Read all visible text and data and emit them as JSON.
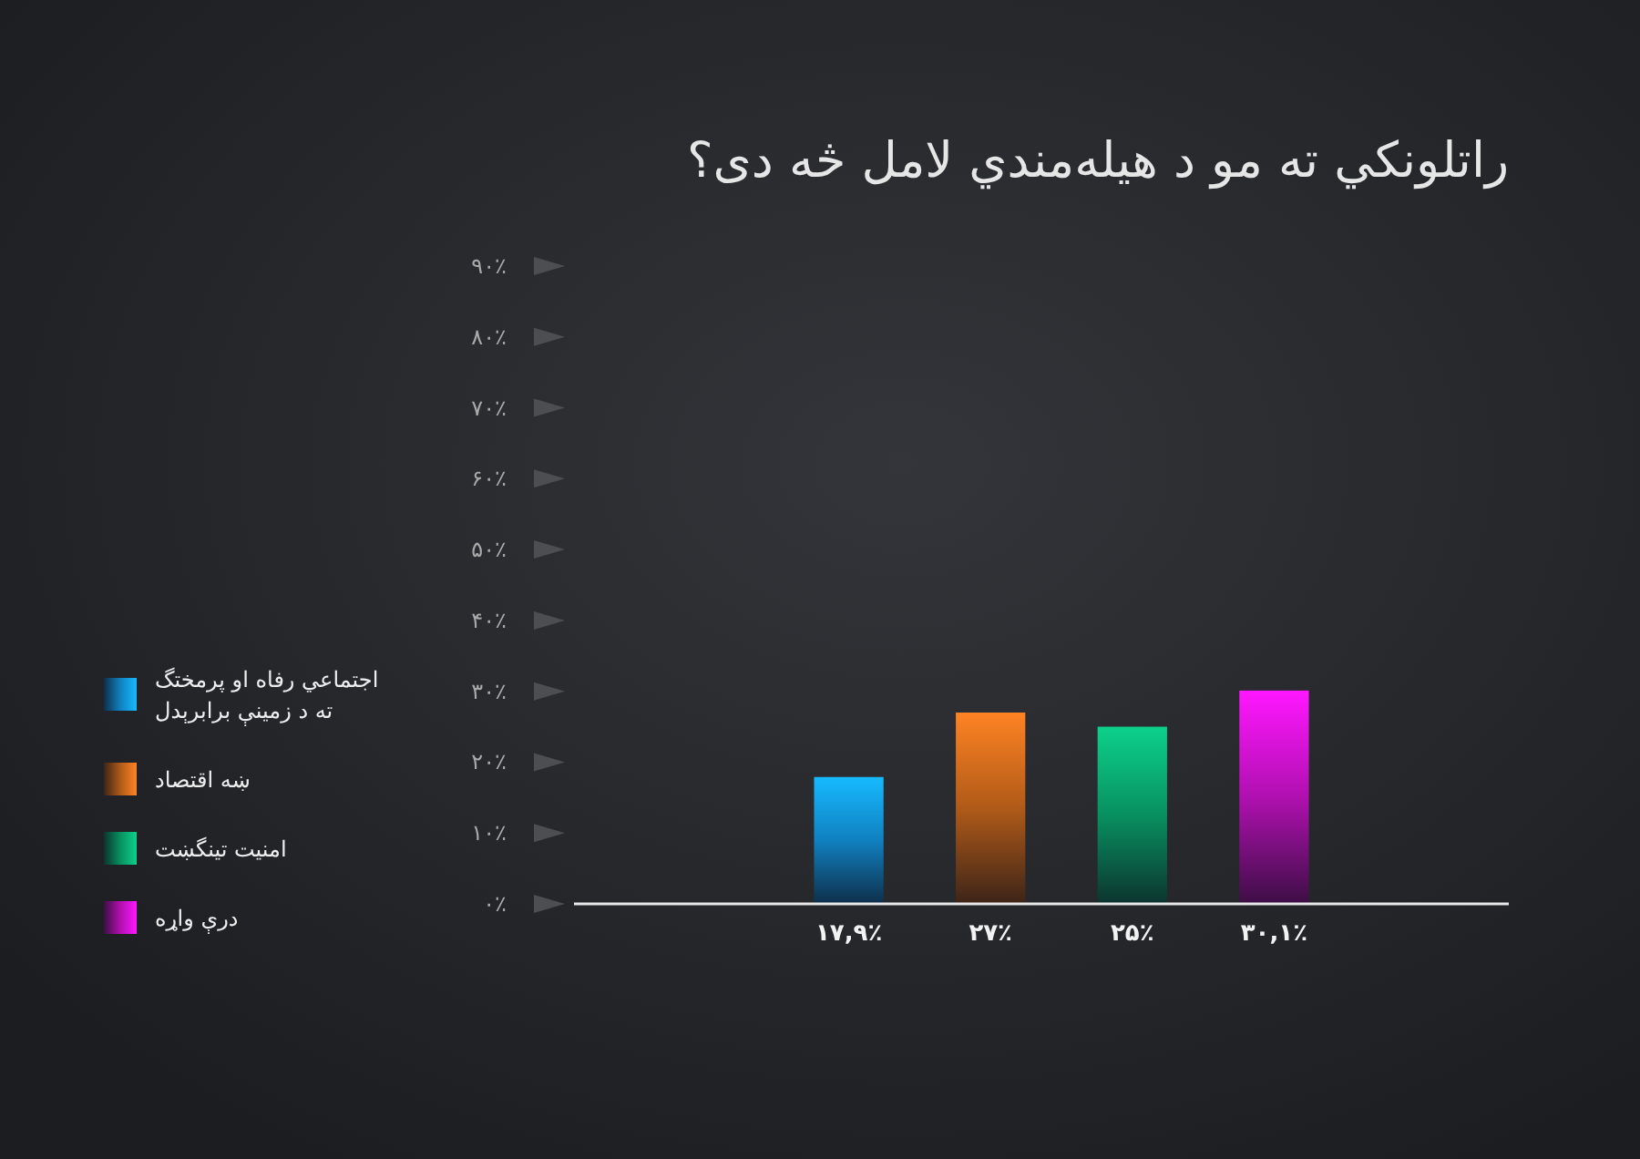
{
  "chart_data": {
    "type": "bar",
    "title": "راتلونکي ته مو د هیله‌مندي لامل څه دی؟",
    "categories": [
      null
    ],
    "series": [
      {
        "name": "اجتماعي رفاه او پرمختگ ته د زمینې برابرېدل",
        "color": "#1080c0",
        "values": [
          17.9
        ],
        "value_labels": [
          "۱۷,۹٪"
        ]
      },
      {
        "name": "ښه اقتصاد",
        "color": "#b05a18",
        "values": [
          27
        ],
        "value_labels": [
          "۲۷٪"
        ]
      },
      {
        "name": "امنیت تینگښت",
        "color": "#089060",
        "values": [
          25
        ],
        "value_labels": [
          "۲۵٪"
        ]
      },
      {
        "name": "درې واړه",
        "color": "#b010b0",
        "values": [
          30.1
        ],
        "value_labels": [
          "۳۰,۱٪"
        ]
      }
    ],
    "ylim": [
      0,
      90
    ],
    "yticks": [
      {
        "value": 0,
        "label": "۰٪"
      },
      {
        "value": 10,
        "label": "۱۰٪"
      },
      {
        "value": 20,
        "label": "۲۰٪"
      },
      {
        "value": 30,
        "label": "۳۰٪"
      },
      {
        "value": 40,
        "label": "۴۰٪"
      },
      {
        "value": 50,
        "label": "۵۰٪"
      },
      {
        "value": 60,
        "label": "۶۰٪"
      },
      {
        "value": 70,
        "label": "۷۰٪"
      },
      {
        "value": 80,
        "label": "۸۰٪"
      },
      {
        "value": 90,
        "label": "۹۰٪"
      }
    ],
    "legend": "left",
    "tick_labels": "y"
  }
}
